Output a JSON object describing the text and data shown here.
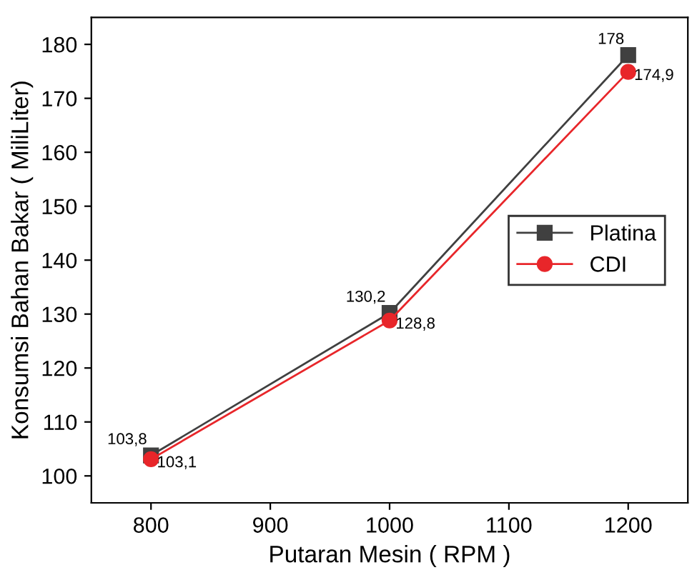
{
  "chart_data": {
    "type": "line",
    "xlabel": "Putaran Mesin ( RPM )",
    "ylabel": "Konsumsi Bahan Bakar ( MiliLiter)",
    "x": [
      800,
      1000,
      1200
    ],
    "series": [
      {
        "name": "Platina",
        "color": "#404040",
        "marker": "square",
        "values": [
          103.8,
          130.2,
          178
        ],
        "value_labels": [
          "103,8",
          "130,2",
          "178"
        ]
      },
      {
        "name": "CDI",
        "color": "#e8262a",
        "marker": "circle",
        "values": [
          103.1,
          128.8,
          174.9
        ],
        "value_labels": [
          "103,1",
          "128,8",
          "174,9"
        ]
      }
    ],
    "xlim": [
      750,
      1250
    ],
    "xticks": [
      800,
      900,
      1000,
      1100,
      1200
    ],
    "ylim": [
      95,
      185
    ],
    "yticks": [
      100,
      110,
      120,
      130,
      140,
      150,
      160,
      170,
      180
    ],
    "grid": false,
    "legend": "right",
    "line_style": "solid"
  }
}
